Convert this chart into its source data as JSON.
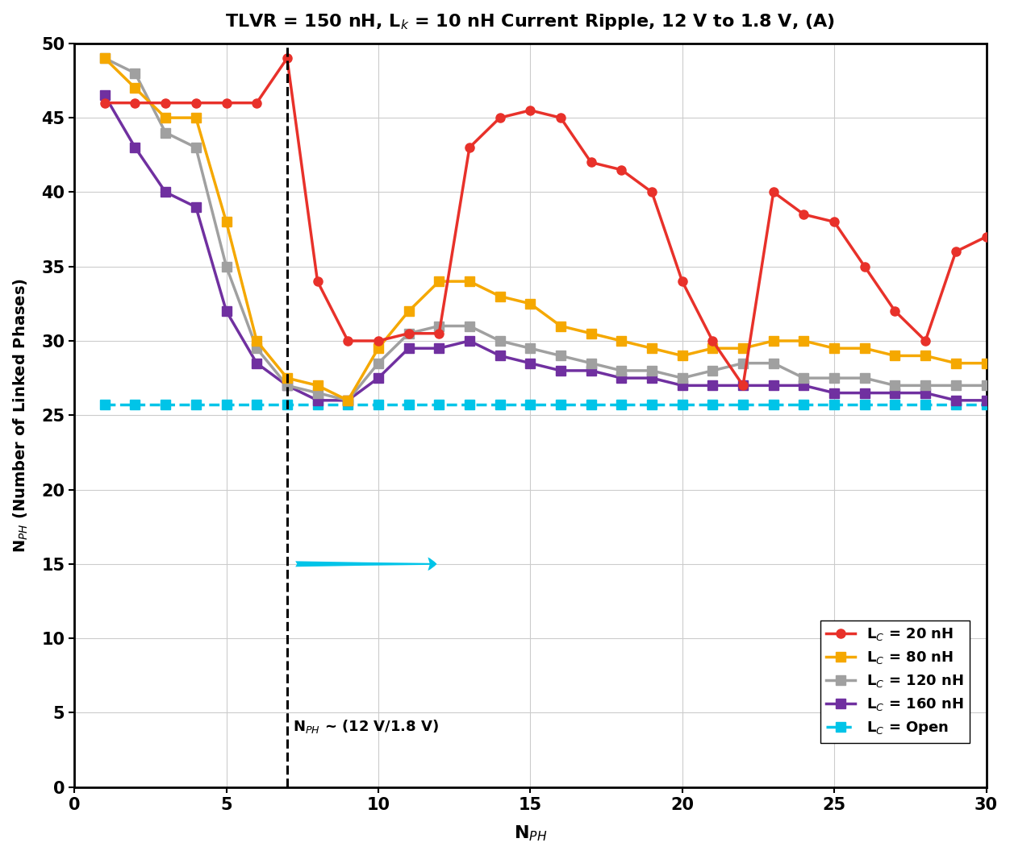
{
  "title": "TLVR = 150 nH, L$_k$ = 10 nH Current Ripple, 12 V to 1.8 V, (A)",
  "xlabel": "N$_{PH}$",
  "ylabel": "N$_{PH}$ (Number of Linked Phases)",
  "xlim": [
    1,
    30
  ],
  "ylim": [
    0,
    50
  ],
  "xticks": [
    0,
    5,
    10,
    15,
    20,
    25,
    30
  ],
  "yticks": [
    0,
    5,
    10,
    15,
    20,
    25,
    30,
    35,
    40,
    45,
    50
  ],
  "dashed_x": 7,
  "annotation_text": "N$_{PH}$ ~ (12 V/1.8 V)",
  "series": [
    {
      "label": "L$_C$ = 20 nH",
      "color": "#E8312A",
      "marker": "o",
      "markersize": 8,
      "linewidth": 2.5,
      "x": [
        1,
        2,
        3,
        4,
        5,
        6,
        7,
        8,
        9,
        10,
        11,
        12,
        13,
        14,
        15,
        16,
        17,
        18,
        19,
        20,
        21,
        22,
        23,
        24,
        25,
        26,
        27,
        28,
        29,
        30
      ],
      "y": [
        46,
        46,
        46,
        46,
        46,
        46,
        49,
        34,
        30,
        30,
        30.5,
        30.5,
        43,
        45,
        45.5,
        45,
        42,
        41.5,
        40,
        34,
        30,
        27,
        40,
        38.5,
        38,
        35,
        32,
        30,
        36,
        37
      ]
    },
    {
      "label": "L$_C$ = 80 nH",
      "color": "#F5A800",
      "marker": "s",
      "markersize": 8,
      "linewidth": 2.5,
      "linestyle": "-",
      "x": [
        1,
        2,
        3,
        4,
        5,
        6,
        7,
        8,
        9,
        10,
        11,
        12,
        13,
        14,
        15,
        16,
        17,
        18,
        19,
        20,
        21,
        22,
        23,
        24,
        25,
        26,
        27,
        28,
        29,
        30
      ],
      "y": [
        49,
        47,
        45,
        45,
        38,
        30,
        27.5,
        27,
        26,
        29.5,
        32,
        34,
        34,
        33,
        32.5,
        31,
        30.5,
        30,
        29.5,
        29,
        29.5,
        29.5,
        30,
        30,
        29.5,
        29.5,
        29,
        29,
        28.5,
        28.5
      ]
    },
    {
      "label": "L$_C$ = 120 nH",
      "color": "#A0A0A0",
      "marker": "s",
      "markersize": 8,
      "linewidth": 2.5,
      "linestyle": "-",
      "x": [
        1,
        2,
        3,
        4,
        5,
        6,
        7,
        8,
        9,
        10,
        11,
        12,
        13,
        14,
        15,
        16,
        17,
        18,
        19,
        20,
        21,
        22,
        23,
        24,
        25,
        26,
        27,
        28,
        29,
        30
      ],
      "y": [
        49,
        48,
        44,
        43,
        35,
        29.5,
        27,
        26.5,
        26,
        28.5,
        30.5,
        31,
        31,
        30,
        29.5,
        29,
        28.5,
        28,
        28,
        27.5,
        28,
        28.5,
        28.5,
        27.5,
        27.5,
        27.5,
        27,
        27,
        27,
        27
      ]
    },
    {
      "label": "L$_C$ = 160 nH",
      "color": "#7030A0",
      "marker": "s",
      "markersize": 8,
      "linewidth": 2.5,
      "linestyle": "-",
      "x": [
        1,
        2,
        3,
        4,
        5,
        6,
        7,
        8,
        9,
        10,
        11,
        12,
        13,
        14,
        15,
        16,
        17,
        18,
        19,
        20,
        21,
        22,
        23,
        24,
        25,
        26,
        27,
        28,
        29,
        30
      ],
      "y": [
        46.5,
        43,
        40,
        39,
        32,
        28.5,
        27,
        26,
        26,
        27.5,
        29.5,
        29.5,
        30,
        29,
        28.5,
        28,
        28,
        27.5,
        27.5,
        27,
        27,
        27,
        27,
        27,
        26.5,
        26.5,
        26.5,
        26.5,
        26,
        26
      ]
    },
    {
      "label": "L$_C$ = Open",
      "color": "#00C4E8",
      "marker": "s",
      "markersize": 8,
      "linewidth": 2.5,
      "linestyle": "--",
      "x": [
        1,
        2,
        3,
        4,
        5,
        6,
        7,
        8,
        9,
        10,
        11,
        12,
        13,
        14,
        15,
        16,
        17,
        18,
        19,
        20,
        21,
        22,
        23,
        24,
        25,
        26,
        27,
        28,
        29,
        30
      ],
      "y": [
        25.7,
        25.7,
        25.7,
        25.7,
        25.7,
        25.7,
        25.7,
        25.7,
        25.7,
        25.7,
        25.7,
        25.7,
        25.7,
        25.7,
        25.7,
        25.7,
        25.7,
        25.7,
        25.7,
        25.7,
        25.7,
        25.7,
        25.7,
        25.7,
        25.7,
        25.7,
        25.7,
        25.7,
        25.7,
        25.7
      ]
    }
  ]
}
